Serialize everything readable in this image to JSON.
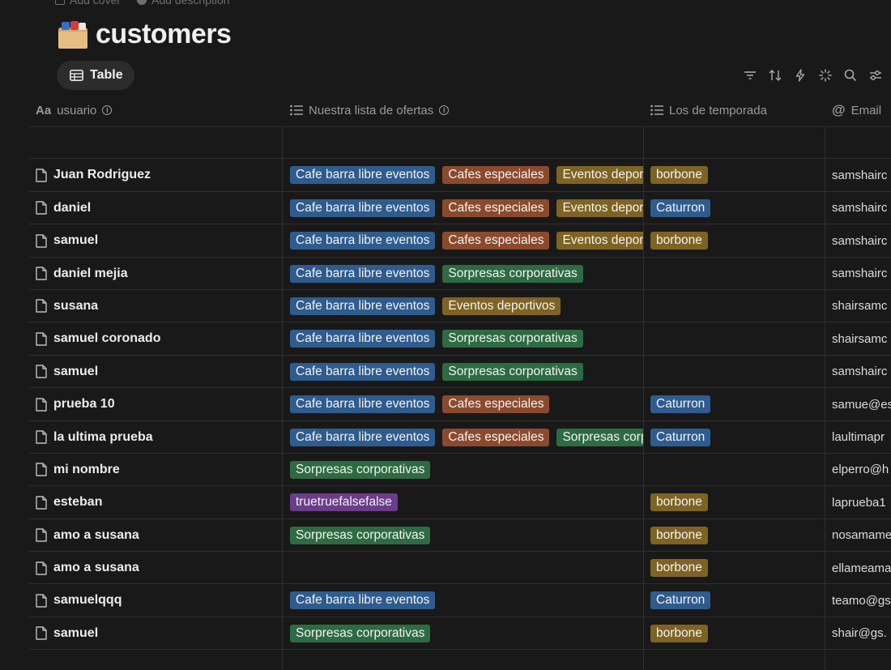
{
  "top_links": {
    "add_cover": "Add cover",
    "add_description": "Add description"
  },
  "page": {
    "title": "customers",
    "icon": "card-index-folder-icon"
  },
  "view": {
    "tab_label": "Table"
  },
  "toolbar": [
    "filter-icon",
    "sort-icon",
    "automation-bolt-icon",
    "ai-sparkle-icon",
    "search-icon",
    "settings-sliders-icon"
  ],
  "columns": [
    {
      "label": "usuario",
      "icon": "title-aa-icon",
      "info": true
    },
    {
      "label": "Nuestra lista de ofertas",
      "icon": "multi-select-list-icon",
      "info": true
    },
    {
      "label": "Los de temporada",
      "icon": "multi-select-list-icon",
      "info": false
    },
    {
      "label": "Email",
      "icon": "at-sign-icon",
      "info": false
    }
  ],
  "tag_colors": {
    "blue": "#2f5c8e",
    "orange": "#8b4a2e",
    "yellow": "#7e6323",
    "green": "#2d6b43",
    "purple": "#6a3d8a"
  },
  "rows": [
    {
      "name": "",
      "offers": [],
      "season": [],
      "email": ""
    },
    {
      "name": "Juan Rodriguez",
      "offers": [
        [
          "Cafe barra libre eventos",
          "blue"
        ],
        [
          "Cafes especiales",
          "orange"
        ],
        [
          "Eventos deportivos",
          "yellow"
        ]
      ],
      "season": [
        [
          "borbone",
          "yellow"
        ]
      ],
      "email": "samshairc"
    },
    {
      "name": "daniel",
      "offers": [
        [
          "Cafe barra libre eventos",
          "blue"
        ],
        [
          "Cafes especiales",
          "orange"
        ],
        [
          "Eventos deportivos",
          "yellow"
        ]
      ],
      "season": [
        [
          "Caturron",
          "blue"
        ]
      ],
      "email": "samshairc"
    },
    {
      "name": "samuel",
      "offers": [
        [
          "Cafe barra libre eventos",
          "blue"
        ],
        [
          "Cafes especiales",
          "orange"
        ],
        [
          "Eventos deportivos",
          "yellow"
        ]
      ],
      "season": [
        [
          "borbone",
          "yellow"
        ]
      ],
      "email": "samshairc"
    },
    {
      "name": "daniel mejia",
      "offers": [
        [
          "Cafe barra libre eventos",
          "blue"
        ],
        [
          "Sorpresas corporativas",
          "green"
        ]
      ],
      "season": [],
      "email": "samshairc"
    },
    {
      "name": "susana",
      "offers": [
        [
          "Cafe barra libre eventos",
          "blue"
        ],
        [
          "Eventos deportivos",
          "yellow"
        ]
      ],
      "season": [],
      "email": "shairsamc"
    },
    {
      "name": "samuel coronado",
      "offers": [
        [
          "Cafe barra libre eventos",
          "blue"
        ],
        [
          "Sorpresas corporativas",
          "green"
        ]
      ],
      "season": [],
      "email": "shairsamc"
    },
    {
      "name": "samuel",
      "offers": [
        [
          "Cafe barra libre eventos",
          "blue"
        ],
        [
          "Sorpresas corporativas",
          "green"
        ]
      ],
      "season": [],
      "email": "samshairc"
    },
    {
      "name": "prueba 10",
      "offers": [
        [
          "Cafe barra libre eventos",
          "blue"
        ],
        [
          "Cafes especiales",
          "orange"
        ]
      ],
      "season": [
        [
          "Caturron",
          "blue"
        ]
      ],
      "email": "samue@es"
    },
    {
      "name": "la ultima prueba",
      "offers": [
        [
          "Cafe barra libre eventos",
          "blue"
        ],
        [
          "Cafes especiales",
          "orange"
        ],
        [
          "Sorpresas corporativas",
          "green"
        ]
      ],
      "season": [
        [
          "Caturron",
          "blue"
        ]
      ],
      "email": "laultimapr"
    },
    {
      "name": "mi nombre",
      "offers": [
        [
          "Sorpresas corporativas",
          "green"
        ]
      ],
      "season": [],
      "email": "elperro@h"
    },
    {
      "name": "esteban",
      "offers": [
        [
          "truetruefalsefalse",
          "purple"
        ]
      ],
      "season": [
        [
          "borbone",
          "yellow"
        ]
      ],
      "email": "laprueba1"
    },
    {
      "name": "amo a susana",
      "offers": [
        [
          "Sorpresas corporativas",
          "green"
        ]
      ],
      "season": [
        [
          "borbone",
          "yellow"
        ]
      ],
      "email": "nosamame"
    },
    {
      "name": "amo a susana",
      "offers": [],
      "season": [
        [
          "borbone",
          "yellow"
        ]
      ],
      "email": "ellameama"
    },
    {
      "name": "samuelqqq",
      "offers": [
        [
          "Cafe barra libre eventos",
          "blue"
        ]
      ],
      "season": [
        [
          "Caturron",
          "blue"
        ]
      ],
      "email": "teamo@gs"
    },
    {
      "name": "samuel",
      "offers": [
        [
          "Sorpresas corporativas",
          "green"
        ]
      ],
      "season": [
        [
          "borbone",
          "yellow"
        ]
      ],
      "email": "shair@gs."
    }
  ]
}
